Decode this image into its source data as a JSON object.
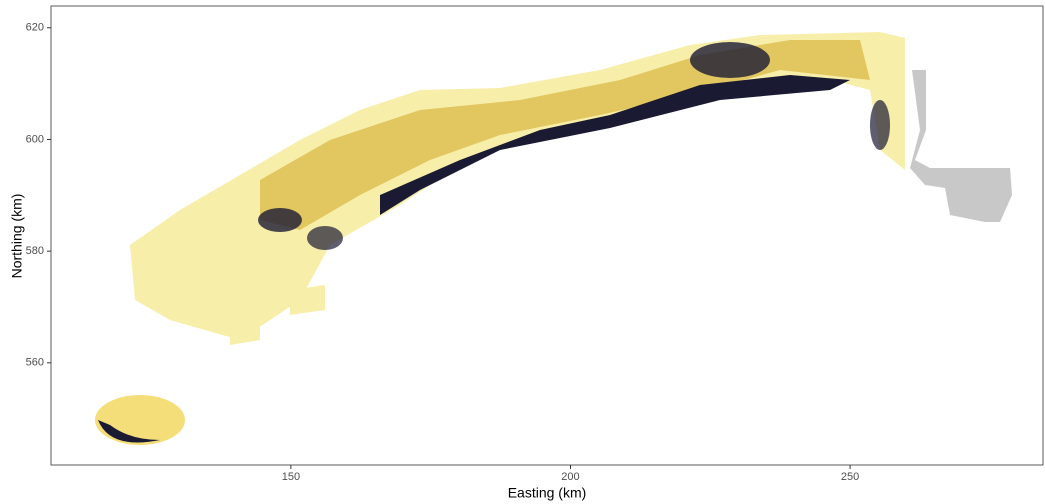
{
  "chart_data": {
    "type": "raster",
    "x_label": "Easting (km)",
    "y_label": "Northing (km)",
    "xlim": [
      107.1,
      284.5
    ],
    "ylim": [
      541.7,
      623.9
    ],
    "xticks": [
      150,
      200,
      250
    ],
    "yticks": [
      560,
      580,
      600,
      620
    ]
  }
}
